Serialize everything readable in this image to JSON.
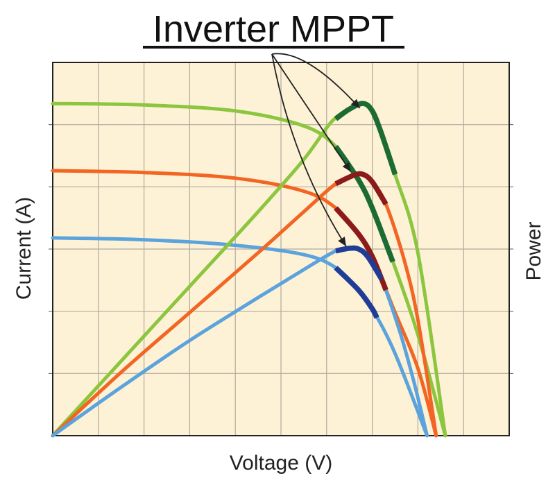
{
  "chart_data": {
    "type": "line",
    "title": "Inverter MPPT",
    "xlabel": "Voltage (V)",
    "ylabel": "Current (A)",
    "ylabel_right": "Power",
    "xlim": [
      0,
      100
    ],
    "ylim": [
      0,
      100
    ],
    "grid": true,
    "plot_background": "#fdf1d6",
    "series": [
      {
        "kind": "current",
        "color": "#8cc63f",
        "points": [
          [
            0,
            89
          ],
          [
            20,
            88.6
          ],
          [
            40,
            87
          ],
          [
            55,
            83
          ],
          [
            62,
            77.5
          ],
          [
            67,
            68.5
          ],
          [
            70,
            61
          ],
          [
            75,
            45
          ],
          [
            80,
            27
          ],
          [
            86,
            0
          ]
        ]
      },
      {
        "kind": "current",
        "color": "#f26522",
        "points": [
          [
            0,
            71
          ],
          [
            20,
            70.5
          ],
          [
            40,
            69
          ],
          [
            55,
            65.5
          ],
          [
            62,
            61
          ],
          [
            67,
            54
          ],
          [
            70,
            48
          ],
          [
            75,
            33
          ],
          [
            80,
            18
          ],
          [
            84,
            0
          ]
        ]
      },
      {
        "kind": "current",
        "color": "#5ba3dc",
        "points": [
          [
            0,
            53
          ],
          [
            20,
            52.5
          ],
          [
            40,
            51
          ],
          [
            55,
            48.5
          ],
          [
            62,
            45
          ],
          [
            67,
            39
          ],
          [
            70,
            34
          ],
          [
            75,
            22
          ],
          [
            82,
            0
          ]
        ]
      },
      {
        "kind": "power",
        "color": "#8cc63f",
        "points": [
          [
            0,
            0
          ],
          [
            15,
            20
          ],
          [
            30,
            40
          ],
          [
            45,
            60
          ],
          [
            55,
            74
          ],
          [
            61,
            84
          ],
          [
            65,
            87.5
          ],
          [
            68,
            89
          ],
          [
            70,
            87
          ],
          [
            72,
            81
          ],
          [
            75,
            70
          ],
          [
            80,
            49
          ],
          [
            86,
            0
          ]
        ]
      },
      {
        "kind": "power",
        "color": "#f26522",
        "points": [
          [
            0,
            0
          ],
          [
            15,
            17
          ],
          [
            30,
            33
          ],
          [
            45,
            49
          ],
          [
            55,
            60
          ],
          [
            62,
            67.5
          ],
          [
            66,
            69.8
          ],
          [
            68,
            70
          ],
          [
            70,
            68
          ],
          [
            73,
            62
          ],
          [
            77,
            47
          ],
          [
            80,
            31
          ],
          [
            84,
            0
          ]
        ]
      },
      {
        "kind": "power",
        "color": "#5ba3dc",
        "points": [
          [
            0,
            0
          ],
          [
            15,
            13
          ],
          [
            30,
            25.5
          ],
          [
            45,
            37
          ],
          [
            55,
            44.5
          ],
          [
            62,
            49.5
          ],
          [
            65,
            50.2
          ],
          [
            67,
            50
          ],
          [
            69,
            48
          ],
          [
            72,
            42
          ],
          [
            76,
            28
          ],
          [
            79,
            15
          ],
          [
            82,
            0
          ]
        ]
      }
    ],
    "mppt_highlights": [
      {
        "color": "#1c6b33",
        "power_range": [
          62,
          75
        ],
        "current_range": [
          62,
          74.5
        ]
      },
      {
        "color": "#8b1a1a",
        "power_range": [
          62,
          73
        ],
        "current_range": [
          62,
          73
        ]
      },
      {
        "color": "#1f3c96",
        "power_range": [
          62,
          72
        ],
        "current_range": [
          62,
          71
        ]
      }
    ]
  }
}
